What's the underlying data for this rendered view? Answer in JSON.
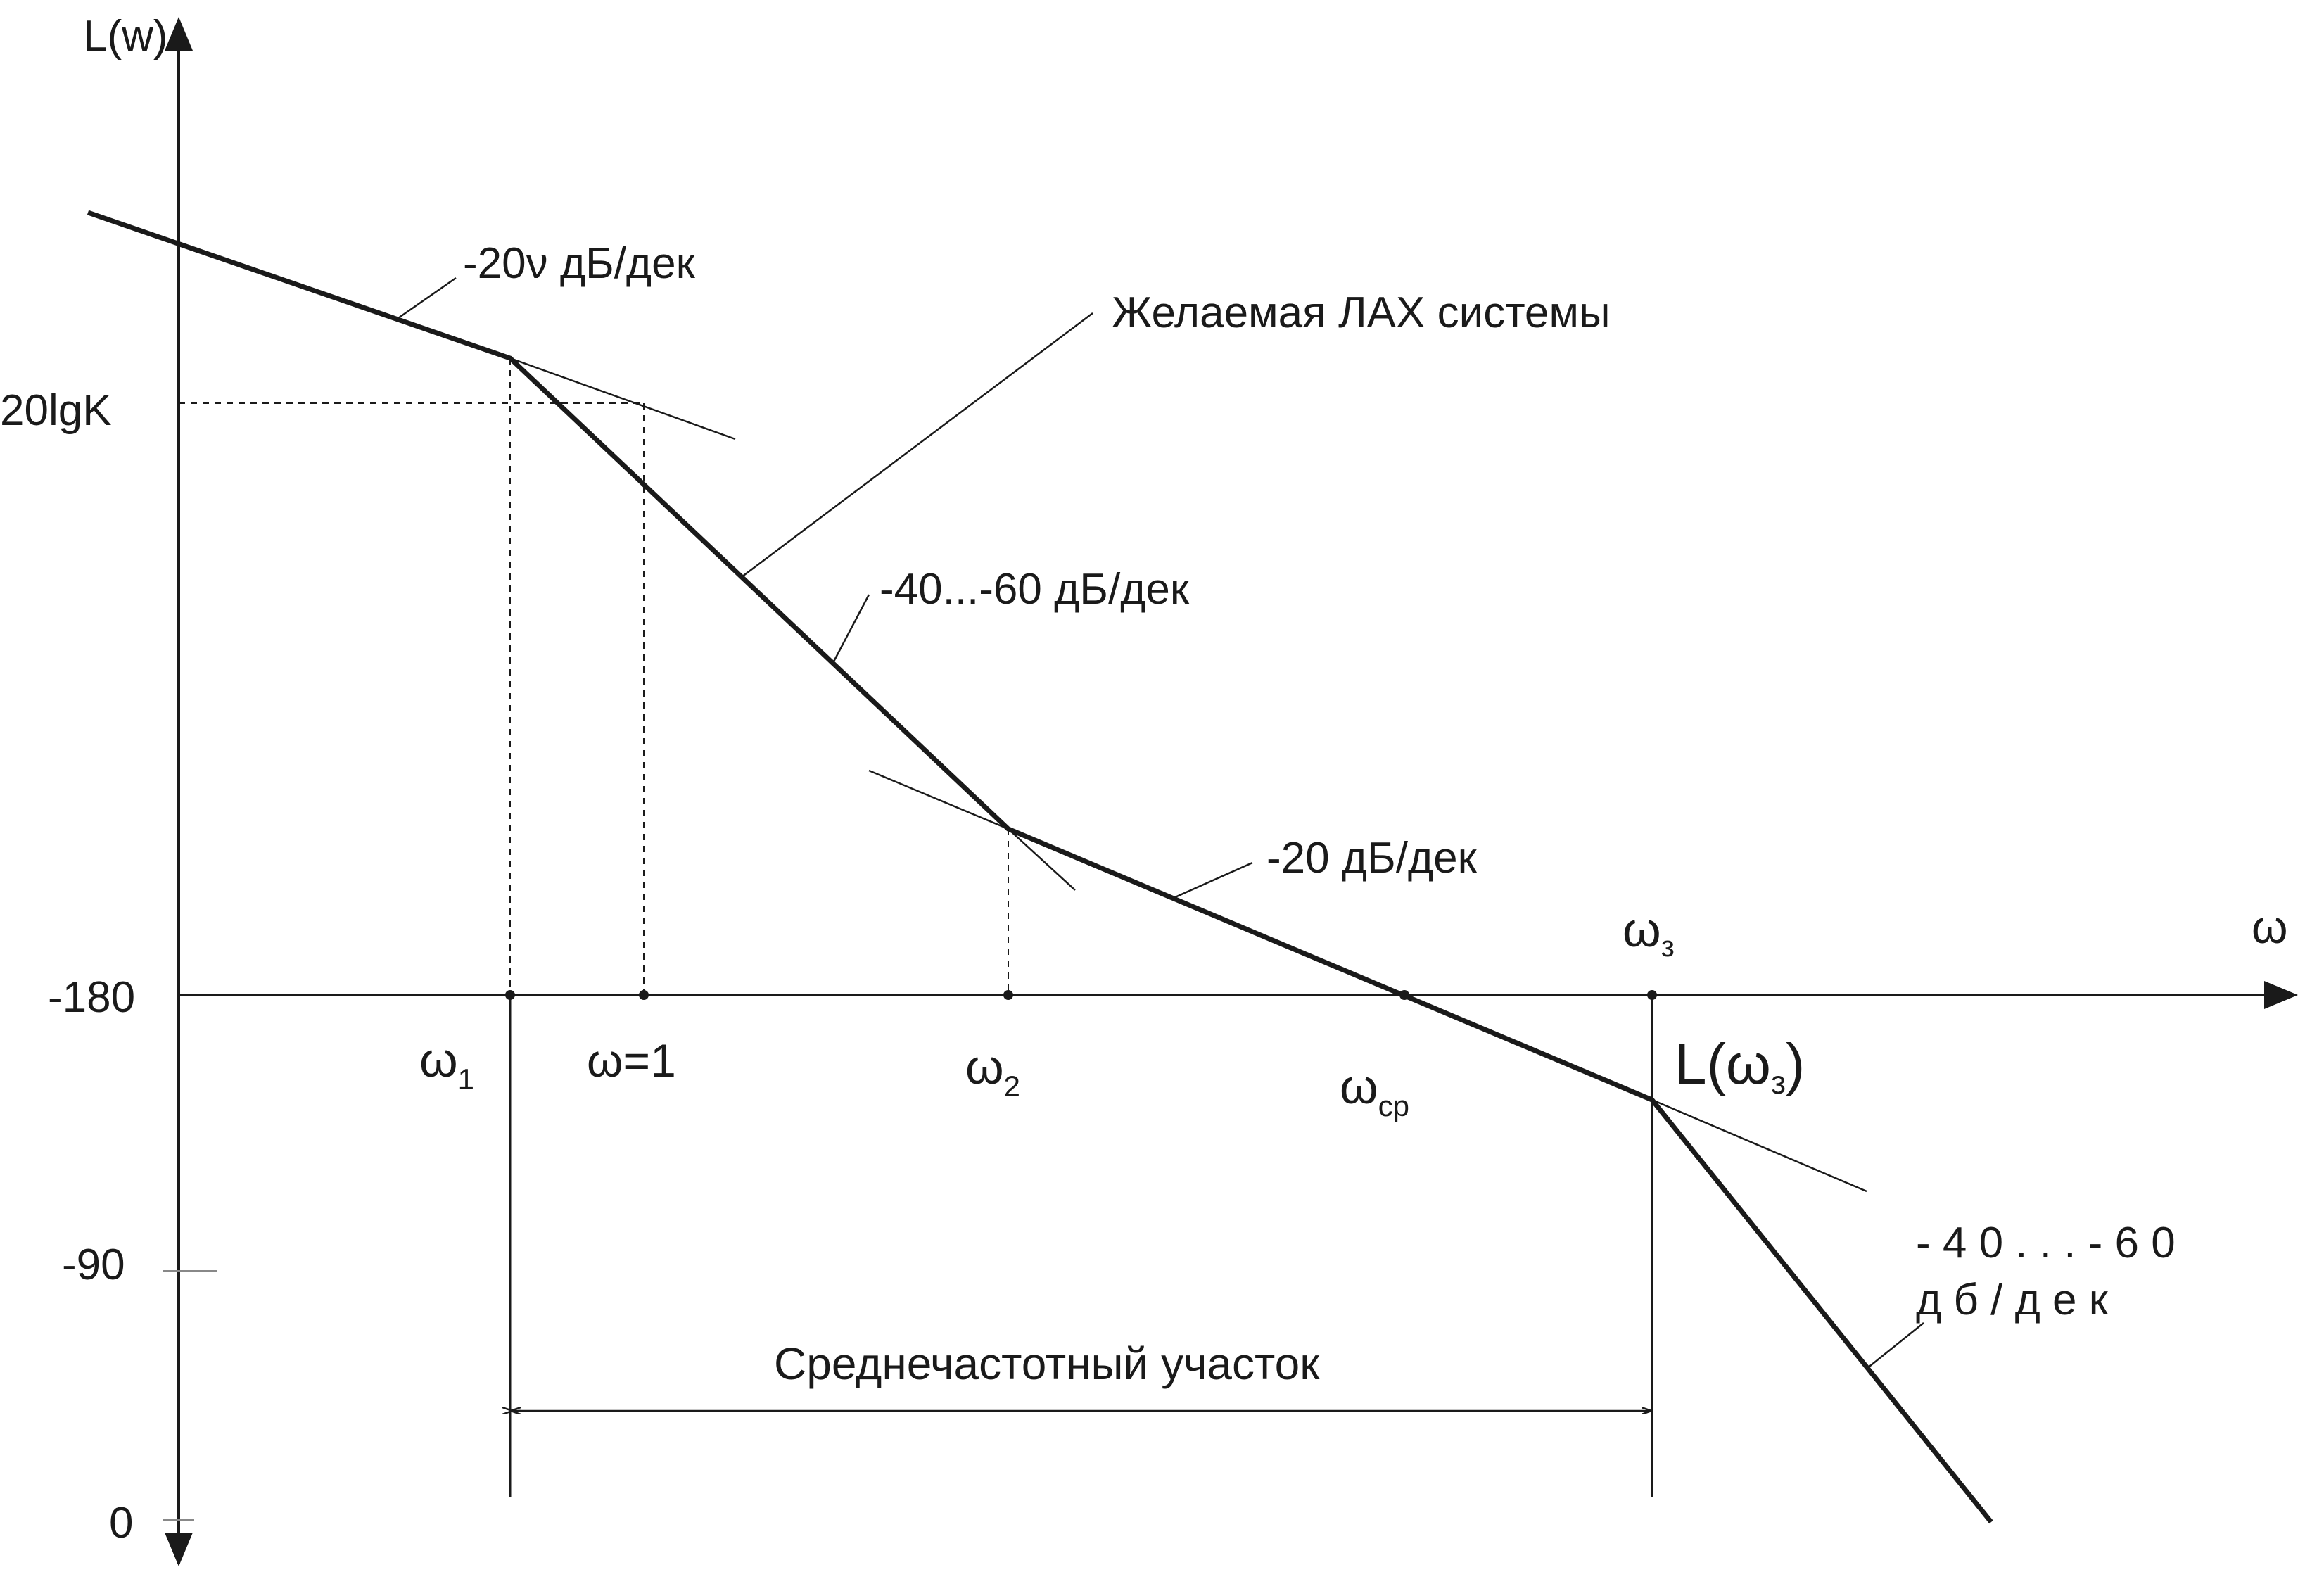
{
  "axes": {
    "y_label": "L(w)",
    "x_label": "ω",
    "y_ticks": {
      "db20": "20lgK",
      "m180": "-180",
      "m90": "-90",
      "zero": "0"
    }
  },
  "frequencies": {
    "w1": {
      "base": "ω",
      "sub": "1"
    },
    "w_one": "ω=1",
    "w2": {
      "base": "ω",
      "sub": "2"
    },
    "wcp": {
      "base": "ω",
      "sub": "ср"
    },
    "wz": {
      "base": "ω",
      "sub": "з"
    },
    "L_wz": {
      "pre": "L(",
      "base": "ω",
      "sub": "з",
      "post": ")"
    }
  },
  "annotations": {
    "slope_low": "-20ν дБ/дек",
    "desired": "Желаемая ЛАХ системы",
    "slope_mid_high": "-40...-60 дБ/дек",
    "slope_mid": "-20 дБ/дек",
    "slope_high_line1": "- 4 0 . . . - 6 0",
    "slope_high_line2": "д б / д е к",
    "mid_range": "Среднечастотный участок"
  },
  "colors": {
    "ink": "#1a1a1a",
    "background": "#ffffff"
  }
}
